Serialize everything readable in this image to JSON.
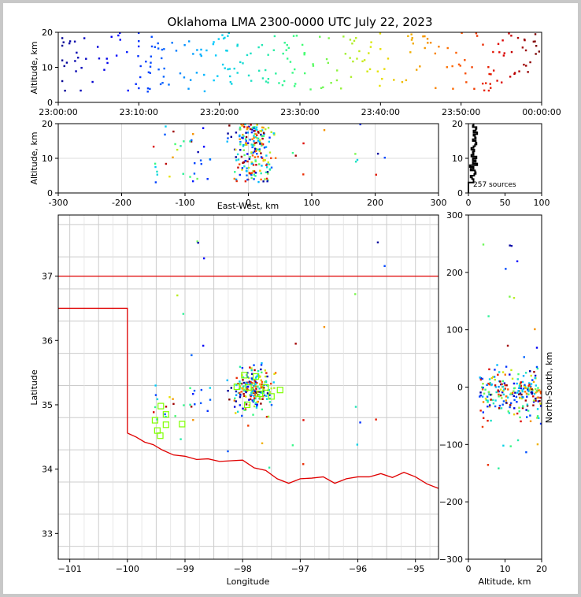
{
  "title": "Oklahoma LMA 2300-0000 UTC July 22, 2023",
  "colors": {
    "state_border": "#e00000",
    "county_lines": "#cccccc",
    "frame": "#000000",
    "stations": "#7fff00"
  },
  "time_height": {
    "ylabel": "Altitude, km",
    "xticks": [
      "23:00:00",
      "23:10:00",
      "23:20:00",
      "23:30:00",
      "23:40:00",
      "23:50:00",
      "00:00:00"
    ],
    "yticks": [
      "0",
      "10",
      "20"
    ],
    "xlim_minutes": [
      0,
      60
    ],
    "ylim": [
      0,
      20
    ]
  },
  "ew_height": {
    "ylabel": "Altitude, km",
    "xlabel": "East-West, km",
    "xticks": [
      "-300",
      "-200",
      "-100",
      "0",
      "100",
      "200",
      "300"
    ],
    "yticks": [
      "0",
      "10",
      "20"
    ],
    "xlim": [
      -300,
      300
    ],
    "ylim": [
      0,
      20
    ]
  },
  "histogram": {
    "xticks": [
      "0",
      "50",
      "100"
    ],
    "yticks": [
      "0",
      "10",
      "20"
    ],
    "annotation": "257 sources",
    "xlim": [
      0,
      100
    ],
    "ylim": [
      0,
      20
    ]
  },
  "plan_view": {
    "xlabel": "Longitude",
    "ylabel": "Latitude",
    "xticks": [
      "−101",
      "−100",
      "−99",
      "−98",
      "−97",
      "−96",
      "−95"
    ],
    "yticks": [
      "33",
      "34",
      "35",
      "36",
      "37"
    ],
    "xlim": [
      -101.2,
      -94.6
    ],
    "ylim": [
      32.6,
      37.95
    ]
  },
  "ns_height": {
    "xlabel": "Altitude, km",
    "ylabel": "North-South, km",
    "xticks": [
      "0",
      "10",
      "20"
    ],
    "yticks": [
      "300",
      "200",
      "100",
      "0",
      "−100",
      "−200",
      "−300"
    ],
    "xlim": [
      0,
      20
    ],
    "ylim": [
      -300,
      300
    ]
  },
  "chart_data": {
    "type": "scatter",
    "total_sources": 257,
    "color_variable": "time (minutes after 23:00 UTC)",
    "colormap": "rainbow",
    "stations": [
      {
        "lon": -97.97,
        "lat": 35.46
      },
      {
        "lon": -97.77,
        "lat": 35.44
      },
      {
        "lon": -98.1,
        "lat": 35.28
      },
      {
        "lon": -97.9,
        "lat": 35.27
      },
      {
        "lon": -97.6,
        "lat": 35.27
      },
      {
        "lon": -97.35,
        "lat": 35.23
      },
      {
        "lon": -97.7,
        "lat": 35.17
      },
      {
        "lon": -97.5,
        "lat": 35.13
      },
      {
        "lon": -97.92,
        "lat": 35.0
      },
      {
        "lon": -99.42,
        "lat": 34.98
      },
      {
        "lon": -99.33,
        "lat": 34.85
      },
      {
        "lon": -99.52,
        "lat": 34.76
      },
      {
        "lon": -99.33,
        "lat": 34.69
      },
      {
        "lon": -99.05,
        "lat": 34.7
      },
      {
        "lon": -99.48,
        "lat": 34.6
      },
      {
        "lon": -99.43,
        "lat": 34.52
      }
    ]
  }
}
